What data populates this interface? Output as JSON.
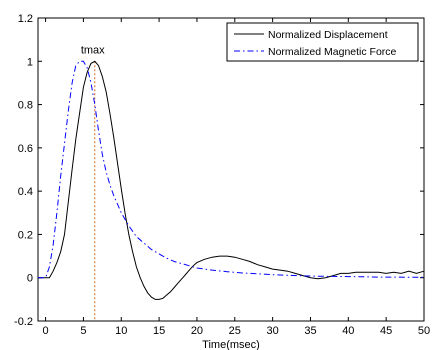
{
  "chart_data": {
    "type": "line",
    "xlabel": "Time(msec)",
    "ylabel": "",
    "title": "",
    "xlim": [
      -1,
      50
    ],
    "ylim": [
      -0.2,
      1.2
    ],
    "xticks": [
      "0",
      "5",
      "10",
      "15",
      "20",
      "25",
      "30",
      "35",
      "40",
      "45",
      "50"
    ],
    "yticks": [
      "-0.2",
      "0",
      "0.2",
      "0.4",
      "0.6",
      "0.8",
      "1",
      "1.2"
    ],
    "grid": false,
    "legend_position": "top-right",
    "annotation": {
      "text": "tmax",
      "x": 6.5
    },
    "series": [
      {
        "name": "Normalized Displacement",
        "style": "solid",
        "color": "#000000",
        "x": [
          -1,
          0.5,
          1,
          1.5,
          2,
          2.5,
          3,
          3.5,
          4,
          4.5,
          5,
          5.5,
          6,
          6.5,
          7,
          7.5,
          8,
          8.5,
          9,
          9.5,
          10,
          10.5,
          11,
          11.5,
          12,
          12.5,
          13,
          13.5,
          14,
          14.5,
          15,
          15.5,
          16,
          16.5,
          17,
          17.5,
          18,
          18.5,
          19,
          19.5,
          20,
          21,
          22,
          23,
          24,
          25,
          26,
          27,
          28,
          29,
          30,
          31,
          32,
          33,
          34,
          35,
          36,
          37,
          38,
          39,
          40,
          41,
          42,
          43,
          44,
          45,
          46,
          47,
          48,
          49,
          50
        ],
        "y": [
          0.0,
          0.0,
          0.03,
          0.07,
          0.12,
          0.2,
          0.35,
          0.5,
          0.64,
          0.76,
          0.88,
          0.95,
          0.99,
          1.0,
          0.98,
          0.93,
          0.86,
          0.76,
          0.65,
          0.53,
          0.41,
          0.3,
          0.2,
          0.12,
          0.05,
          0.0,
          -0.04,
          -0.07,
          -0.09,
          -0.1,
          -0.1,
          -0.095,
          -0.08,
          -0.065,
          -0.045,
          -0.025,
          -0.005,
          0.015,
          0.035,
          0.055,
          0.07,
          0.085,
          0.095,
          0.1,
          0.1,
          0.095,
          0.085,
          0.075,
          0.06,
          0.05,
          0.04,
          0.035,
          0.03,
          0.02,
          0.01,
          0.0,
          -0.005,
          0.0,
          0.01,
          0.02,
          0.02,
          0.025,
          0.025,
          0.025,
          0.025,
          0.02,
          0.025,
          0.02,
          0.03,
          0.02,
          0.03
        ]
      },
      {
        "name": "Normalized Magnetic Force",
        "style": "dashdot",
        "color": "#0000ff",
        "x": [
          -1,
          0,
          0.5,
          1,
          1.5,
          2,
          2.5,
          3,
          3.5,
          4,
          4.5,
          5,
          5.5,
          6,
          6.5,
          7,
          7.5,
          8,
          8.5,
          9,
          9.5,
          10,
          11,
          12,
          13,
          14,
          15,
          16,
          17,
          18,
          19,
          20,
          22,
          24,
          26,
          28,
          30,
          32,
          34,
          36,
          38,
          40,
          42,
          44,
          46,
          48,
          50
        ],
        "y": [
          0.0,
          0.0,
          0.05,
          0.15,
          0.3,
          0.47,
          0.62,
          0.77,
          0.9,
          0.98,
          1.0,
          1.0,
          0.97,
          0.9,
          0.8,
          0.68,
          0.57,
          0.49,
          0.43,
          0.38,
          0.34,
          0.3,
          0.24,
          0.19,
          0.16,
          0.13,
          0.11,
          0.09,
          0.075,
          0.065,
          0.055,
          0.045,
          0.035,
          0.028,
          0.022,
          0.018,
          0.014,
          0.011,
          0.009,
          0.007,
          0.006,
          0.005,
          0.004,
          0.003,
          0.003,
          0.002,
          0.002
        ]
      }
    ],
    "tmax_line": {
      "x": 6.5,
      "y_from": -0.2,
      "y_to": 1.0,
      "color": "#d2691e"
    }
  }
}
